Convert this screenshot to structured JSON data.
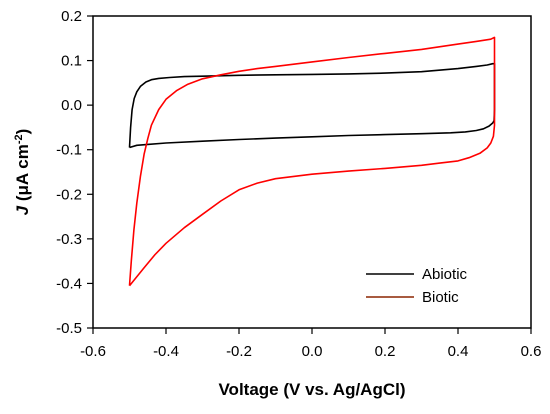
{
  "chart_data": {
    "type": "line",
    "xlabel": "Voltage (V vs. Ag/AgCl)",
    "ylabel": {
      "symbol": "J",
      "open": " (",
      "micro": "μ",
      "unit": "A cm",
      "exponent": "-2",
      "close": ")"
    },
    "xlim": [
      -0.6,
      0.6
    ],
    "ylim": [
      -0.5,
      0.2
    ],
    "x_ticks": [
      -0.6,
      -0.4,
      -0.2,
      0.0,
      0.2,
      0.4,
      0.6
    ],
    "x_tick_labels": [
      "-0.6",
      "-0.4",
      "-0.2",
      "0.0",
      "0.2",
      "0.4",
      "0.6"
    ],
    "y_ticks": [
      0.2,
      0.1,
      0.0,
      -0.1,
      -0.2,
      -0.3,
      -0.4,
      -0.5
    ],
    "y_tick_labels": [
      "0.2",
      "0.1",
      "0.0",
      "-0.1",
      "-0.2",
      "-0.3",
      "-0.4",
      "-0.5"
    ],
    "grid": false,
    "legend_position": "bottom-right",
    "series": [
      {
        "name": "Abiotic",
        "color": "#000000",
        "points": [
          [
            -0.5,
            -0.095
          ],
          [
            -0.497,
            -0.05
          ],
          [
            -0.493,
            -0.01
          ],
          [
            -0.487,
            0.015
          ],
          [
            -0.48,
            0.03
          ],
          [
            -0.47,
            0.042
          ],
          [
            -0.455,
            0.052
          ],
          [
            -0.44,
            0.057
          ],
          [
            -0.42,
            0.06
          ],
          [
            -0.39,
            0.062
          ],
          [
            -0.35,
            0.064
          ],
          [
            -0.3,
            0.065
          ],
          [
            -0.2,
            0.067
          ],
          [
            -0.1,
            0.068
          ],
          [
            0.0,
            0.069
          ],
          [
            0.1,
            0.07
          ],
          [
            0.2,
            0.072
          ],
          [
            0.3,
            0.075
          ],
          [
            0.4,
            0.082
          ],
          [
            0.45,
            0.087
          ],
          [
            0.48,
            0.09
          ],
          [
            0.495,
            0.093
          ],
          [
            0.5,
            0.093
          ],
          [
            0.5,
            0.04
          ],
          [
            0.5,
            -0.01
          ],
          [
            0.499,
            -0.035
          ],
          [
            0.495,
            -0.04
          ],
          [
            0.485,
            -0.047
          ],
          [
            0.47,
            -0.053
          ],
          [
            0.45,
            -0.057
          ],
          [
            0.42,
            -0.06
          ],
          [
            0.38,
            -0.062
          ],
          [
            0.3,
            -0.064
          ],
          [
            0.2,
            -0.066
          ],
          [
            0.1,
            -0.068
          ],
          [
            0.0,
            -0.071
          ],
          [
            -0.1,
            -0.074
          ],
          [
            -0.2,
            -0.077
          ],
          [
            -0.3,
            -0.081
          ],
          [
            -0.4,
            -0.085
          ],
          [
            -0.45,
            -0.088
          ],
          [
            -0.48,
            -0.09
          ],
          [
            -0.5,
            -0.095
          ]
        ]
      },
      {
        "name": "Biotic",
        "color": "#ff0000",
        "legend_color": "#8b2500",
        "points": [
          [
            -0.5,
            -0.405
          ],
          [
            -0.495,
            -0.35
          ],
          [
            -0.488,
            -0.28
          ],
          [
            -0.48,
            -0.22
          ],
          [
            -0.47,
            -0.16
          ],
          [
            -0.46,
            -0.11
          ],
          [
            -0.45,
            -0.075
          ],
          [
            -0.44,
            -0.045
          ],
          [
            -0.42,
            -0.01
          ],
          [
            -0.4,
            0.013
          ],
          [
            -0.37,
            0.033
          ],
          [
            -0.34,
            0.047
          ],
          [
            -0.3,
            0.059
          ],
          [
            -0.25,
            0.068
          ],
          [
            -0.2,
            0.076
          ],
          [
            -0.15,
            0.082
          ],
          [
            -0.1,
            0.087
          ],
          [
            0.0,
            0.097
          ],
          [
            0.1,
            0.107
          ],
          [
            0.2,
            0.116
          ],
          [
            0.3,
            0.125
          ],
          [
            0.4,
            0.137
          ],
          [
            0.45,
            0.143
          ],
          [
            0.49,
            0.148
          ],
          [
            0.5,
            0.152
          ],
          [
            0.5,
            0.09
          ],
          [
            0.5,
            0.0
          ],
          [
            0.5,
            -0.045
          ],
          [
            0.497,
            -0.07
          ],
          [
            0.49,
            -0.085
          ],
          [
            0.48,
            -0.096
          ],
          [
            0.46,
            -0.108
          ],
          [
            0.43,
            -0.118
          ],
          [
            0.4,
            -0.125
          ],
          [
            0.35,
            -0.13
          ],
          [
            0.3,
            -0.135
          ],
          [
            0.2,
            -0.142
          ],
          [
            0.1,
            -0.148
          ],
          [
            0.0,
            -0.155
          ],
          [
            -0.1,
            -0.165
          ],
          [
            -0.15,
            -0.175
          ],
          [
            -0.2,
            -0.19
          ],
          [
            -0.25,
            -0.215
          ],
          [
            -0.3,
            -0.245
          ],
          [
            -0.35,
            -0.275
          ],
          [
            -0.4,
            -0.31
          ],
          [
            -0.43,
            -0.335
          ],
          [
            -0.46,
            -0.365
          ],
          [
            -0.48,
            -0.385
          ],
          [
            -0.5,
            -0.405
          ]
        ]
      }
    ]
  }
}
